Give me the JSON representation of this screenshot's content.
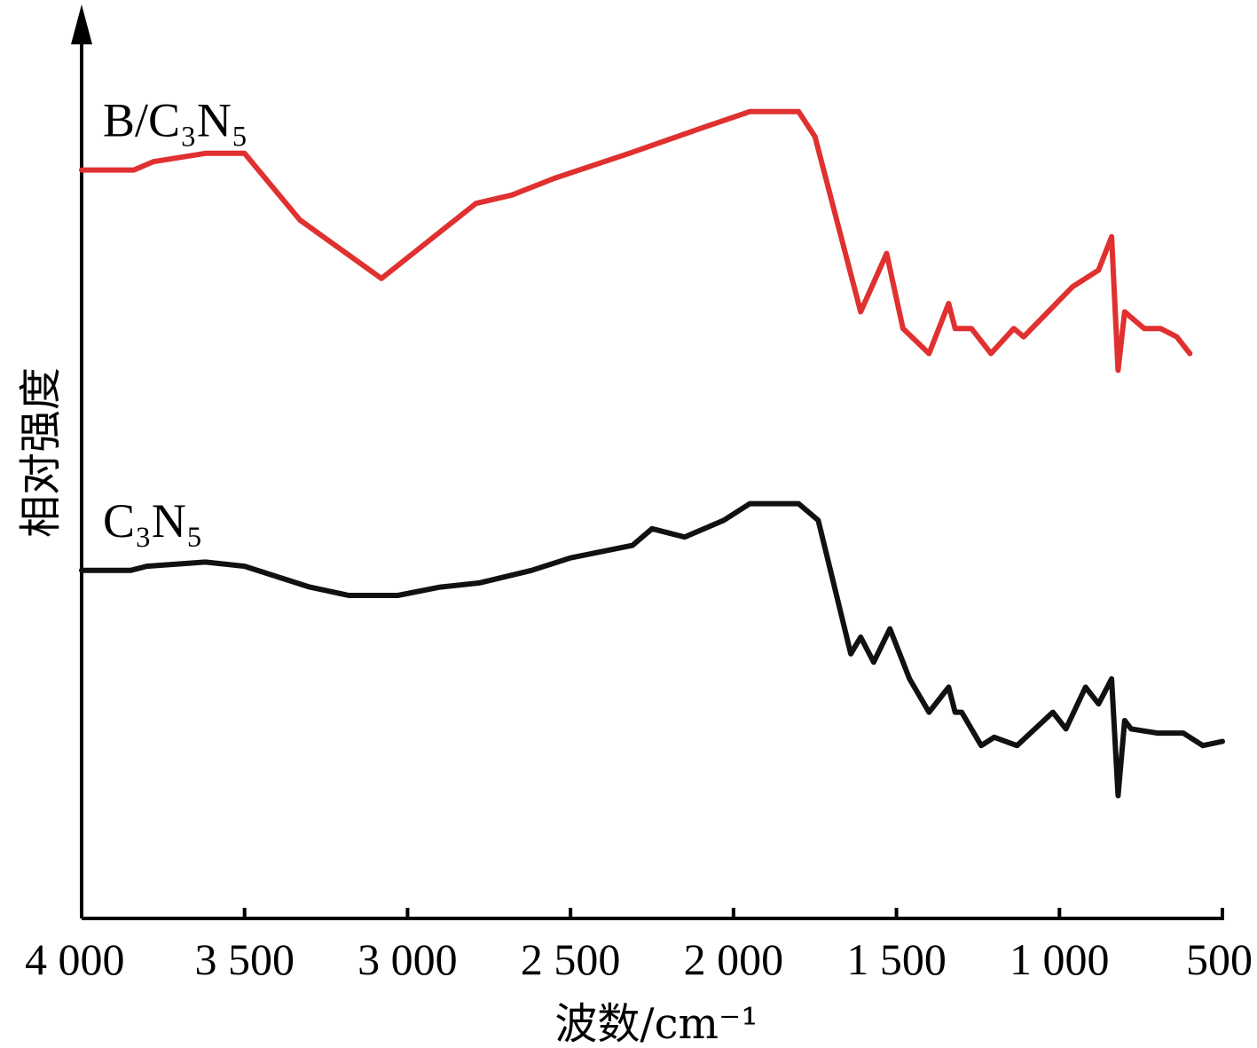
{
  "chart_data": {
    "type": "line",
    "xlabel": "波数/cm⁻¹",
    "ylabel": "相对强度",
    "xlim": [
      4000,
      500
    ],
    "x_reversed": true,
    "y_ticks_shown": false,
    "grid": false,
    "xticks": [
      4000,
      3500,
      3000,
      2500,
      2000,
      1500,
      1000,
      500
    ],
    "xtick_labels": [
      "4 000",
      "3 500",
      "3 000",
      "2 500",
      "2 000",
      "1 500",
      "1 000",
      "500"
    ],
    "ylim": [
      0,
      100
    ],
    "series": [
      {
        "name": "B/C₃N₅",
        "color": "#e03030",
        "points": [
          [
            4000,
            86
          ],
          [
            3840,
            86
          ],
          [
            3780,
            87
          ],
          [
            3620,
            88
          ],
          [
            3500,
            88
          ],
          [
            3330,
            80
          ],
          [
            3080,
            73
          ],
          [
            2790,
            82
          ],
          [
            2680,
            83
          ],
          [
            2550,
            85
          ],
          [
            2320,
            88
          ],
          [
            2100,
            91
          ],
          [
            1950,
            93
          ],
          [
            1800,
            93
          ],
          [
            1750,
            90
          ],
          [
            1610,
            69
          ],
          [
            1530,
            76
          ],
          [
            1480,
            67
          ],
          [
            1400,
            64
          ],
          [
            1340,
            70
          ],
          [
            1320,
            67
          ],
          [
            1270,
            67
          ],
          [
            1210,
            64
          ],
          [
            1140,
            67
          ],
          [
            1110,
            66
          ],
          [
            960,
            72
          ],
          [
            880,
            74
          ],
          [
            840,
            78
          ],
          [
            820,
            62
          ],
          [
            800,
            69
          ],
          [
            740,
            67
          ],
          [
            690,
            67
          ],
          [
            640,
            66
          ],
          [
            600,
            64
          ]
        ]
      },
      {
        "name": "C₃N₅",
        "color": "#111111",
        "points": [
          [
            4000,
            38
          ],
          [
            3850,
            38
          ],
          [
            3800,
            38.5
          ],
          [
            3620,
            39
          ],
          [
            3500,
            38.5
          ],
          [
            3300,
            36
          ],
          [
            3180,
            35
          ],
          [
            3030,
            35
          ],
          [
            2900,
            36
          ],
          [
            2780,
            36.5
          ],
          [
            2620,
            38
          ],
          [
            2500,
            39.5
          ],
          [
            2310,
            41
          ],
          [
            2250,
            43
          ],
          [
            2150,
            42
          ],
          [
            2030,
            44
          ],
          [
            1950,
            46
          ],
          [
            1830,
            46
          ],
          [
            1800,
            46
          ],
          [
            1740,
            44
          ],
          [
            1640,
            28
          ],
          [
            1610,
            30
          ],
          [
            1570,
            27
          ],
          [
            1520,
            31
          ],
          [
            1460,
            25
          ],
          [
            1400,
            21
          ],
          [
            1340,
            24
          ],
          [
            1320,
            21
          ],
          [
            1300,
            21
          ],
          [
            1240,
            17
          ],
          [
            1200,
            18
          ],
          [
            1130,
            17
          ],
          [
            1020,
            21
          ],
          [
            980,
            19
          ],
          [
            920,
            24
          ],
          [
            880,
            22
          ],
          [
            840,
            25
          ],
          [
            820,
            11
          ],
          [
            800,
            20
          ],
          [
            780,
            19
          ],
          [
            700,
            18.5
          ],
          [
            620,
            18.5
          ],
          [
            560,
            17
          ],
          [
            500,
            17.5
          ]
        ]
      }
    ]
  }
}
